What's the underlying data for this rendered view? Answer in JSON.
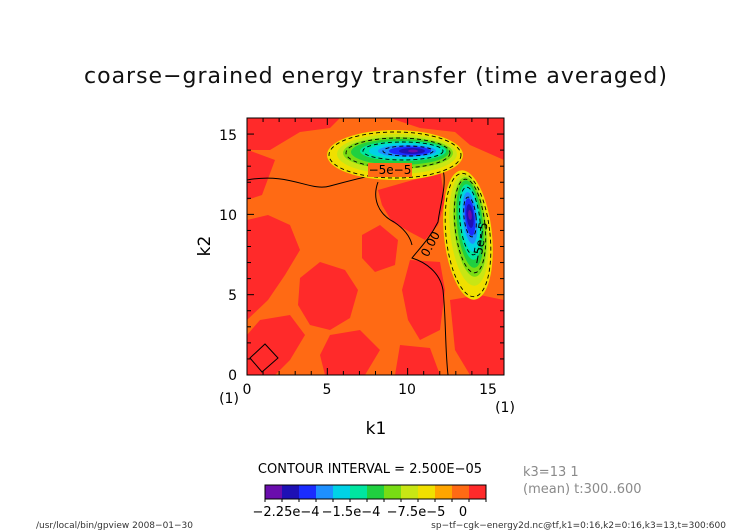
{
  "chart_data": {
    "type": "contour",
    "title": "coarse−grained energy transfer (time averaged)",
    "xlabel": "k1",
    "ylabel": "k2",
    "xlim": [
      0,
      16
    ],
    "ylim": [
      0,
      16
    ],
    "x_ticks": [
      "0",
      "5",
      "10",
      "15"
    ],
    "y_ticks": [
      "0",
      "5",
      "10",
      "15"
    ],
    "x_index_labels": [
      "(1)",
      "(1)"
    ],
    "contour_interval_text": "CONTOUR INTERVAL = 2.500E−05",
    "contour_labels": [
      "−5e−5",
      "0.00",
      "−5e−5"
    ],
    "colorbar": {
      "tick_labels": [
        "−2.25e−4",
        "−1.5e−4",
        "−7.5e−5",
        "0"
      ],
      "colors": [
        "#6a0dad",
        "#1e10b4",
        "#1a2cff",
        "#1e90ff",
        "#00d2e6",
        "#00e6a0",
        "#20d040",
        "#78dc14",
        "#c8e614",
        "#f0e000",
        "#ffa500",
        "#ff6a14",
        "#ff2a2a"
      ],
      "levels": [
        -0.000325,
        -0.0003,
        -0.000275,
        -0.00025,
        -0.000225,
        -0.0002,
        -0.000175,
        -0.00015,
        -0.000125,
        -0.0001,
        -7.5e-05,
        -5e-05,
        -2.5e-05,
        0,
        2.5e-05
      ]
    },
    "features": [
      {
        "kind": "negative_blob",
        "center": [
          10,
          14
        ],
        "min_value": -0.0003
      },
      {
        "kind": "negative_blob",
        "center": [
          14,
          9
        ],
        "min_value": -0.0003
      }
    ]
  },
  "info": {
    "slice": "k3=13 1",
    "mean": "(mean) t:300..600"
  },
  "footer": {
    "left": "/usr/local/bin/gpview  2008−01−30",
    "right": "sp−tf−cgk−energy2d.nc@tf,k1=0:16,k2=0:16,k3=13,t=300:600"
  }
}
